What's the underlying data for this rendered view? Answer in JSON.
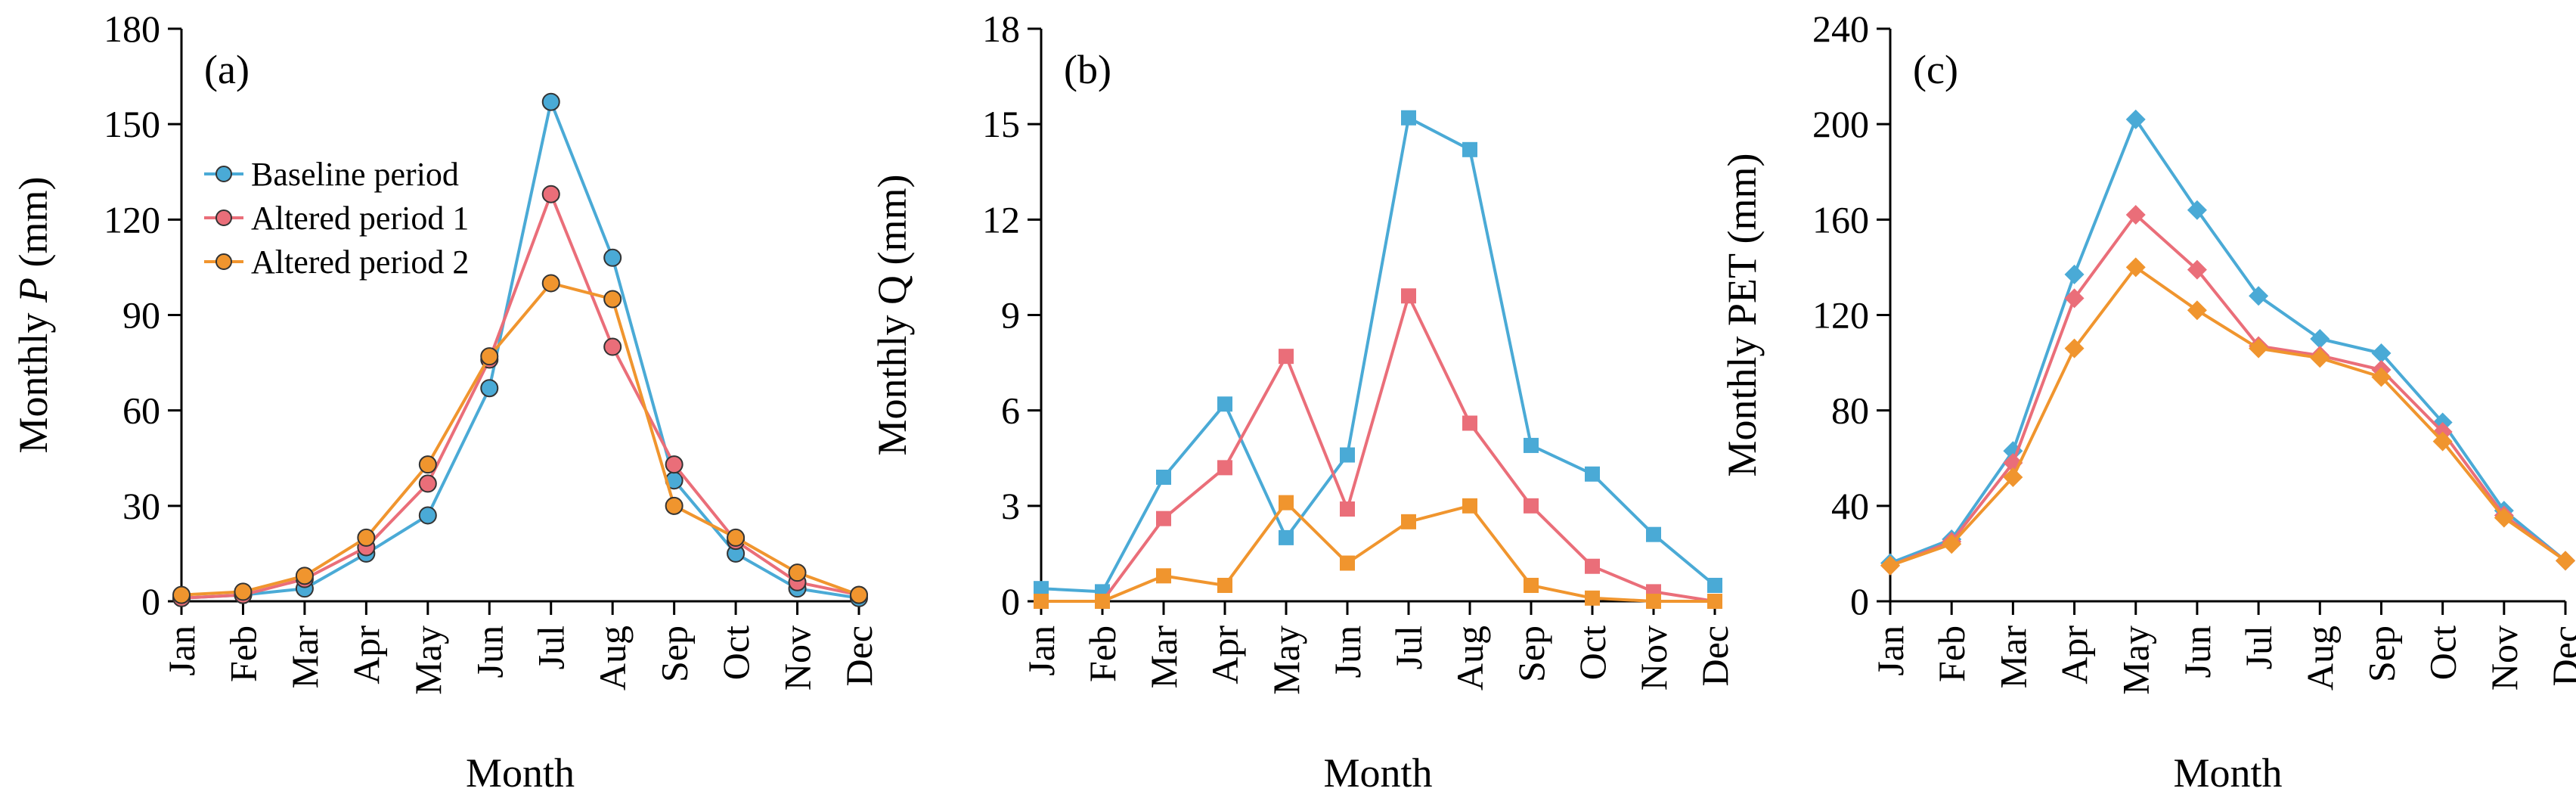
{
  "colors": {
    "baseline": "#4aaad6",
    "altered1": "#ea6e79",
    "altered2": "#f0952e"
  },
  "chart_data": [
    {
      "type": "line",
      "panel_label": "(a)",
      "xlabel": "Month",
      "ylabel": "Monthly P (mm)",
      "ylabel_parts": [
        "Monthly ",
        "P",
        " (mm)"
      ],
      "categories": [
        "Jan",
        "Feb",
        "Mar",
        "Apr",
        "May",
        "Jun",
        "Jul",
        "Aug",
        "Sep",
        "Oct",
        "Nov",
        "Dec"
      ],
      "ylim": [
        0,
        180
      ],
      "yticks": [
        0,
        30,
        60,
        90,
        120,
        150,
        180
      ],
      "marker": "circle",
      "legend": "top-left",
      "series": [
        {
          "name": "Baseline period",
          "color_key": "baseline",
          "values": [
            1,
            2,
            4,
            15,
            27,
            67,
            157,
            108,
            38,
            15,
            4,
            1
          ]
        },
        {
          "name": "Altered period 1",
          "color_key": "altered1",
          "values": [
            1,
            2,
            7,
            17,
            37,
            76,
            128,
            80,
            43,
            19,
            6,
            2
          ]
        },
        {
          "name": "Altered period 2",
          "color_key": "altered2",
          "values": [
            2,
            3,
            8,
            20,
            43,
            77,
            100,
            95,
            30,
            20,
            9,
            2
          ]
        }
      ]
    },
    {
      "type": "line",
      "panel_label": "(b)",
      "xlabel": "Month",
      "ylabel": "Monthly Q (mm)",
      "categories": [
        "Jan",
        "Feb",
        "Mar",
        "Apr",
        "May",
        "Jun",
        "Jul",
        "Aug",
        "Sep",
        "Oct",
        "Nov",
        "Dec"
      ],
      "ylim": [
        0,
        18
      ],
      "yticks": [
        0,
        3,
        6,
        9,
        12,
        15,
        18
      ],
      "marker": "square",
      "series": [
        {
          "color_key": "baseline",
          "values": [
            0.4,
            0.3,
            3.9,
            6.2,
            2.0,
            4.6,
            15.2,
            14.2,
            4.9,
            4.0,
            2.1,
            0.5
          ]
        },
        {
          "color_key": "altered1",
          "values": [
            0.0,
            0.0,
            2.6,
            4.2,
            7.7,
            2.9,
            9.6,
            5.6,
            3.0,
            1.1,
            0.3,
            0.0
          ]
        },
        {
          "color_key": "altered2",
          "values": [
            0.0,
            0.0,
            0.8,
            0.5,
            3.1,
            1.2,
            2.5,
            3.0,
            0.5,
            0.1,
            0.0,
            0.0
          ]
        }
      ]
    },
    {
      "type": "line",
      "panel_label": "(c)",
      "xlabel": "Month",
      "ylabel": "Monthly PET (mm)",
      "categories": [
        "Jan",
        "Feb",
        "Mar",
        "Apr",
        "May",
        "Jun",
        "Jul",
        "Aug",
        "Sep",
        "Oct",
        "Nov",
        "Dec"
      ],
      "ylim": [
        0,
        240
      ],
      "yticks": [
        0,
        40,
        80,
        120,
        160,
        200,
        240
      ],
      "marker": "diamond",
      "series": [
        {
          "color_key": "baseline",
          "values": [
            16,
            26,
            63,
            137,
            202,
            164,
            128,
            110,
            104,
            75,
            38,
            17
          ]
        },
        {
          "color_key": "altered1",
          "values": [
            15,
            25,
            58,
            127,
            162,
            139,
            107,
            103,
            97,
            71,
            36,
            17
          ]
        },
        {
          "color_key": "altered2",
          "values": [
            15,
            24,
            52,
            106,
            140,
            122,
            106,
            102,
            94,
            67,
            35,
            17
          ]
        }
      ]
    }
  ]
}
